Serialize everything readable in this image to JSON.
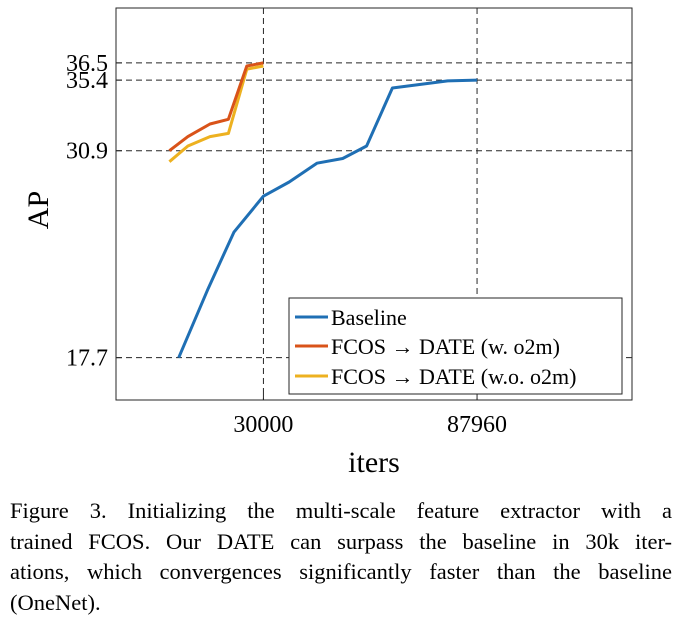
{
  "chart_data": {
    "type": "line",
    "xlabel": "iters",
    "ylabel": "AP",
    "xlim": [
      -10000,
      130000
    ],
    "ylim": [
      15.0,
      40.0
    ],
    "x_ticks": [
      {
        "value": 30000,
        "label": "30000"
      },
      {
        "value": 87960,
        "label": "87960"
      }
    ],
    "y_ticks": [
      {
        "value": 17.7,
        "label": "17.7"
      },
      {
        "value": 30.9,
        "label": "30.9"
      },
      {
        "value": 35.4,
        "label": "35.4"
      },
      {
        "value": 36.5,
        "label": "36.5"
      }
    ],
    "grid": "dashed reference lines at tick values",
    "legend_position": "bottom-right",
    "series": [
      {
        "name": "Baseline",
        "color": "#1f6fb4",
        "x": [
          7000,
          15000,
          22000,
          30000,
          37000,
          44500,
          51500,
          58000,
          65000,
          80000,
          87960
        ],
        "y": [
          17.7,
          22.1,
          25.7,
          28.0,
          28.9,
          30.1,
          30.4,
          31.2,
          34.9,
          35.35,
          35.4
        ]
      },
      {
        "name": "FCOS → DATE (w. o2m)",
        "color": "#d95319",
        "x": [
          4500,
          9500,
          15500,
          20500,
          25500,
          30000
        ],
        "y": [
          30.9,
          31.8,
          32.6,
          32.9,
          36.3,
          36.5
        ]
      },
      {
        "name": "FCOS → DATE (w.o. o2m)",
        "color": "#edb120",
        "x": [
          4500,
          9500,
          15500,
          20500,
          25500,
          30000
        ],
        "y": [
          30.2,
          31.2,
          31.8,
          32.0,
          36.1,
          36.3
        ]
      }
    ]
  },
  "caption": {
    "lines": [
      "Figure 3.  Initializing the multi-scale feature extractor with a",
      "trained FCOS. Our DATE can surpass the baseline in 30k iter-",
      "ations, which convergences significantly faster than the baseline",
      "(OneNet)."
    ]
  }
}
